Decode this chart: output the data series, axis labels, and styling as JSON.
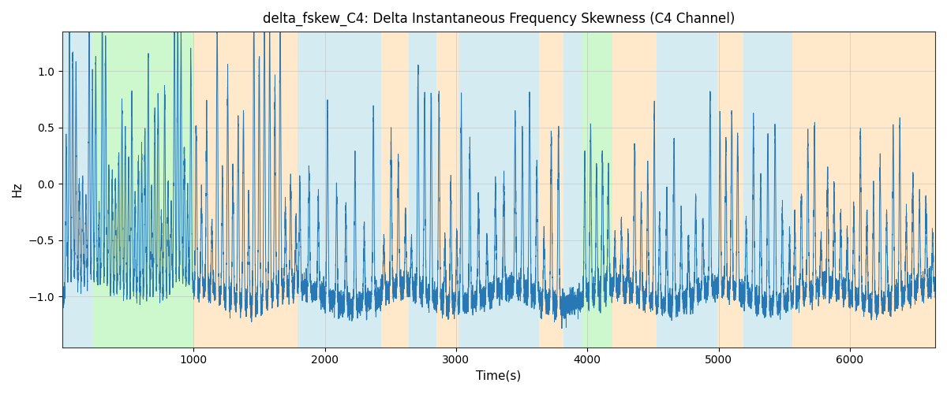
{
  "title": "delta_fskew_C4: Delta Instantaneous Frequency Skewness (C4 Channel)",
  "xlabel": "Time(s)",
  "ylabel": "Hz",
  "xlim": [
    0,
    6650
  ],
  "ylim": [
    -1.45,
    1.35
  ],
  "yticks": [
    -1.0,
    -0.5,
    0.0,
    0.5,
    1.0
  ],
  "xticks": [
    1000,
    2000,
    3000,
    4000,
    5000,
    6000
  ],
  "line_color": "#2878b5",
  "line_width": 0.7,
  "grid_color": "#b0b0b0",
  "grid_alpha": 0.6,
  "figsize": [
    12.0,
    5.0
  ],
  "dpi": 100,
  "background_regions": [
    {
      "xstart": 0,
      "xend": 230,
      "color": "#add8e6",
      "alpha": 0.5
    },
    {
      "xstart": 230,
      "xend": 1000,
      "color": "#90ee90",
      "alpha": 0.45
    },
    {
      "xstart": 1000,
      "xend": 1790,
      "color": "#ffd7a0",
      "alpha": 0.55
    },
    {
      "xstart": 1790,
      "xend": 2430,
      "color": "#add8e6",
      "alpha": 0.5
    },
    {
      "xstart": 2430,
      "xend": 2640,
      "color": "#ffd7a0",
      "alpha": 0.55
    },
    {
      "xstart": 2640,
      "xend": 2850,
      "color": "#add8e6",
      "alpha": 0.5
    },
    {
      "xstart": 2850,
      "xend": 3020,
      "color": "#ffd7a0",
      "alpha": 0.55
    },
    {
      "xstart": 3020,
      "xend": 3430,
      "color": "#add8e6",
      "alpha": 0.5
    },
    {
      "xstart": 3430,
      "xend": 3630,
      "color": "#add8e6",
      "alpha": 0.5
    },
    {
      "xstart": 3630,
      "xend": 3820,
      "color": "#ffd7a0",
      "alpha": 0.55
    },
    {
      "xstart": 3820,
      "xend": 3960,
      "color": "#add8e6",
      "alpha": 0.5
    },
    {
      "xstart": 3960,
      "xend": 4190,
      "color": "#90ee90",
      "alpha": 0.45
    },
    {
      "xstart": 4190,
      "xend": 4530,
      "color": "#ffd7a0",
      "alpha": 0.55
    },
    {
      "xstart": 4530,
      "xend": 4990,
      "color": "#add8e6",
      "alpha": 0.5
    },
    {
      "xstart": 4990,
      "xend": 5190,
      "color": "#ffd7a0",
      "alpha": 0.55
    },
    {
      "xstart": 5190,
      "xend": 5560,
      "color": "#add8e6",
      "alpha": 0.5
    },
    {
      "xstart": 5560,
      "xend": 5760,
      "color": "#ffd7a0",
      "alpha": 0.55
    },
    {
      "xstart": 5760,
      "xend": 6650,
      "color": "#ffd7a0",
      "alpha": 0.55
    }
  ],
  "seed": 42,
  "n_points": 13300
}
